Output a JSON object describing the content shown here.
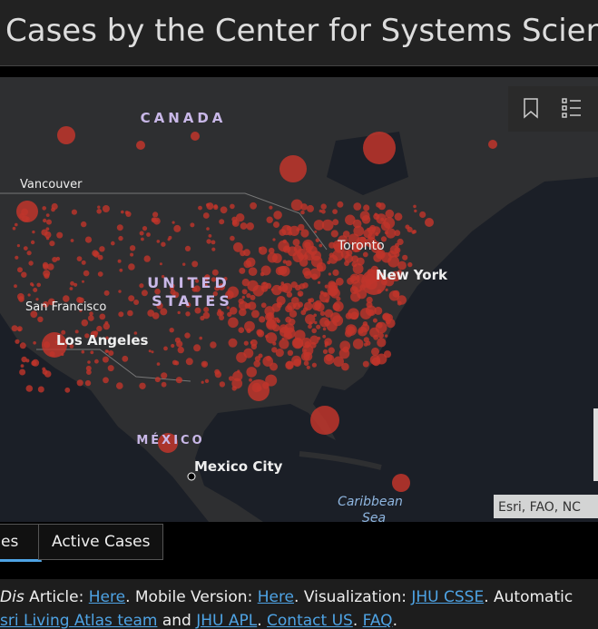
{
  "header": {
    "title": "Cases by the Center for Systems Science an"
  },
  "map": {
    "labels": {
      "canada": "CANADA",
      "vancouver": "Vancouver",
      "united": "UNITED",
      "states": "STATES",
      "toronto": "Toronto",
      "new_york": "New York",
      "san_francisco": "San Francisco",
      "los_angeles": "Los Angeles",
      "mexico": "MÉXICO",
      "mexico_city": "Mexico City",
      "caribbean": "Caribbean",
      "sea": "Sea"
    },
    "attribution": "Esri, FAO, NC"
  },
  "tabs": [
    "es",
    "Active Cases"
  ],
  "footer": {
    "line1": [
      "Dis",
      " Article: ",
      "Here",
      ". Mobile Version: ",
      "Here",
      ". Visualization: ",
      "JHU CSSE",
      ". Automatic"
    ],
    "line2": [
      "sri Living Atlas team",
      " and ",
      "JHU APL",
      ". ",
      "Contact US",
      ". ",
      "FAQ",
      "."
    ]
  }
}
